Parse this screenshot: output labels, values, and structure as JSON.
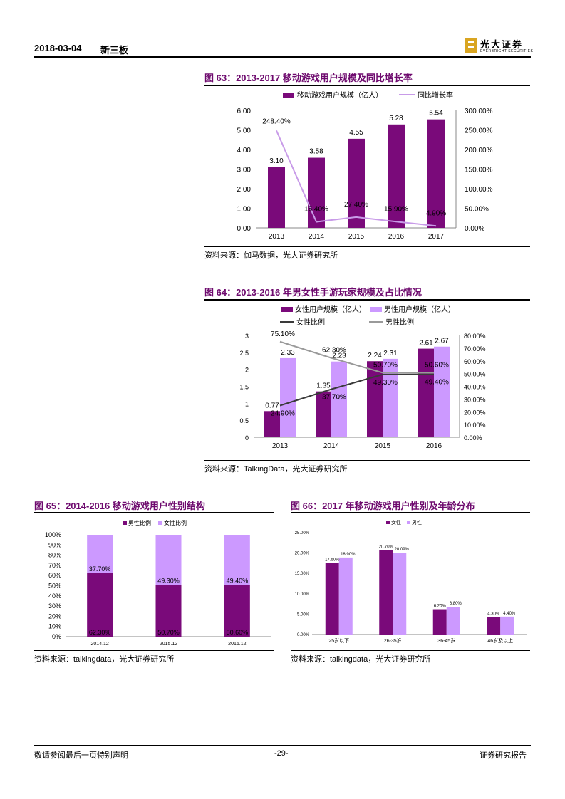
{
  "header": {
    "date": "2018-03-04",
    "section": "新三板",
    "logo_cn": "光大证券",
    "logo_en": "EVERBRIGHT SECURITIES"
  },
  "colors": {
    "dark_purple": "#7a0a7a",
    "light_purple": "#cc99ff",
    "line_purple": "#c89be8",
    "dark_line": "#3a3a3a",
    "gray_line": "#9a9a9a",
    "title_color": "#6e0a6e"
  },
  "figures": {
    "fig63": {
      "title": "图 63：2013-2017 移动游戏用户规模及同比增长率",
      "source": "资料来源：伽马数据，光大证券研究所"
    },
    "fig64": {
      "title": "图 64：2013-2016 年男女性手游玩家规模及占比情况",
      "source": "资料来源：TalkingData，光大证券研究所"
    },
    "fig65": {
      "title": "图 65：2014-2016 移动游戏用户性别结构",
      "source": "资料来源：talkingdata，光大证券研究所"
    },
    "fig66": {
      "title": "图 66：2017 年移动游戏用户性别及年龄分布",
      "source": "资料来源：talkingdata，光大证券研究所"
    }
  },
  "footer": {
    "left": "敬请参阅最后一页特别声明",
    "page": "-29-",
    "right": "证券研究报告"
  },
  "chart_data": [
    {
      "id": "fig63",
      "type": "bar",
      "categories": [
        "2013",
        "2014",
        "2015",
        "2016",
        "2017"
      ],
      "series": [
        {
          "name": "移动游戏用户规模（亿人）",
          "kind": "bar",
          "axis": "left",
          "values": [
            3.1,
            3.58,
            4.55,
            5.28,
            5.54
          ],
          "labels": [
            "3.10",
            "3.58",
            "4.55",
            "5.28",
            "5.54"
          ]
        },
        {
          "name": "同比增长率",
          "kind": "line",
          "axis": "right",
          "values": [
            248.4,
            15.4,
            27.4,
            15.9,
            4.9
          ],
          "labels": [
            "248.40%",
            "15.40%",
            "27.40%",
            "15.90%",
            "4.90%"
          ]
        }
      ],
      "ylim_left": [
        0,
        6
      ],
      "yticks_left": [
        "0.00",
        "1.00",
        "2.00",
        "3.00",
        "4.00",
        "5.00",
        "6.00"
      ],
      "ylim_right": [
        0,
        300
      ],
      "yticks_right": [
        "0.00%",
        "50.00%",
        "100.00%",
        "150.00%",
        "200.00%",
        "250.00%",
        "300.00%"
      ],
      "legend": "top"
    },
    {
      "id": "fig64",
      "type": "bar",
      "categories": [
        "2013",
        "2014",
        "2015",
        "2016"
      ],
      "series": [
        {
          "name": "女性用户规模（亿人）",
          "kind": "bar",
          "axis": "left",
          "values": [
            0.77,
            1.35,
            2.24,
            2.61
          ],
          "labels": [
            "0.77",
            "1.35",
            "2.24",
            "2.61"
          ]
        },
        {
          "name": "男性用户规模（亿人）",
          "kind": "bar",
          "axis": "left",
          "values": [
            2.33,
            2.23,
            2.31,
            2.67
          ],
          "labels": [
            "2.33",
            "2.23",
            "2.31",
            "2.67"
          ]
        },
        {
          "name": "女性比例",
          "kind": "line",
          "axis": "right",
          "values": [
            24.9,
            37.7,
            49.3,
            49.4
          ],
          "labels": [
            "24.90%",
            "37.70%",
            "49.30%",
            "49.40%"
          ]
        },
        {
          "name": "男性比例",
          "kind": "line",
          "axis": "right",
          "values": [
            75.1,
            62.3,
            50.7,
            50.6
          ],
          "labels": [
            "75.10%",
            "62.30%",
            "50.70%",
            "50.60%"
          ]
        }
      ],
      "ylim_left": [
        0,
        3
      ],
      "yticks_left": [
        "0",
        "0.5",
        "1",
        "1.5",
        "2",
        "2.5",
        "3"
      ],
      "ylim_right": [
        0,
        80
      ],
      "yticks_right": [
        "0.00%",
        "10.00%",
        "20.00%",
        "30.00%",
        "40.00%",
        "50.00%",
        "60.00%",
        "70.00%",
        "80.00%"
      ],
      "legend": "top"
    },
    {
      "id": "fig65",
      "type": "bar",
      "stacked": true,
      "categories": [
        "2014.12",
        "2015.12",
        "2016.12"
      ],
      "series": [
        {
          "name": "男性比例",
          "values": [
            62.3,
            50.7,
            50.6
          ],
          "labels": [
            "62.30%",
            "50.70%",
            "50.60%"
          ]
        },
        {
          "name": "女性比例",
          "values": [
            37.7,
            49.3,
            49.4
          ],
          "labels": [
            "37.70%",
            "49.30%",
            "49.40%"
          ]
        }
      ],
      "ylim": [
        0,
        100
      ],
      "yticks": [
        "0%",
        "10%",
        "20%",
        "30%",
        "40%",
        "50%",
        "60%",
        "70%",
        "80%",
        "90%",
        "100%"
      ],
      "legend": "top"
    },
    {
      "id": "fig66",
      "type": "bar",
      "categories": [
        "25岁以下",
        "26-35岁",
        "36-45岁",
        "46岁及以上"
      ],
      "series": [
        {
          "name": "女性",
          "values": [
            17.6,
            20.7,
            6.2,
            4.3
          ],
          "labels": [
            "17.60%",
            "20.70%",
            "6.20%",
            "4.30%"
          ]
        },
        {
          "name": "男性",
          "values": [
            18.9,
            20.09,
            6.8,
            4.4
          ],
          "labels": [
            "18.90%",
            "20.09%",
            "6.80%",
            "4.40%"
          ]
        }
      ],
      "ylim": [
        0,
        25
      ],
      "yticks": [
        "0.00%",
        "5.00%",
        "10.00%",
        "15.00%",
        "20.00%",
        "25.00%"
      ],
      "legend": "top"
    }
  ]
}
